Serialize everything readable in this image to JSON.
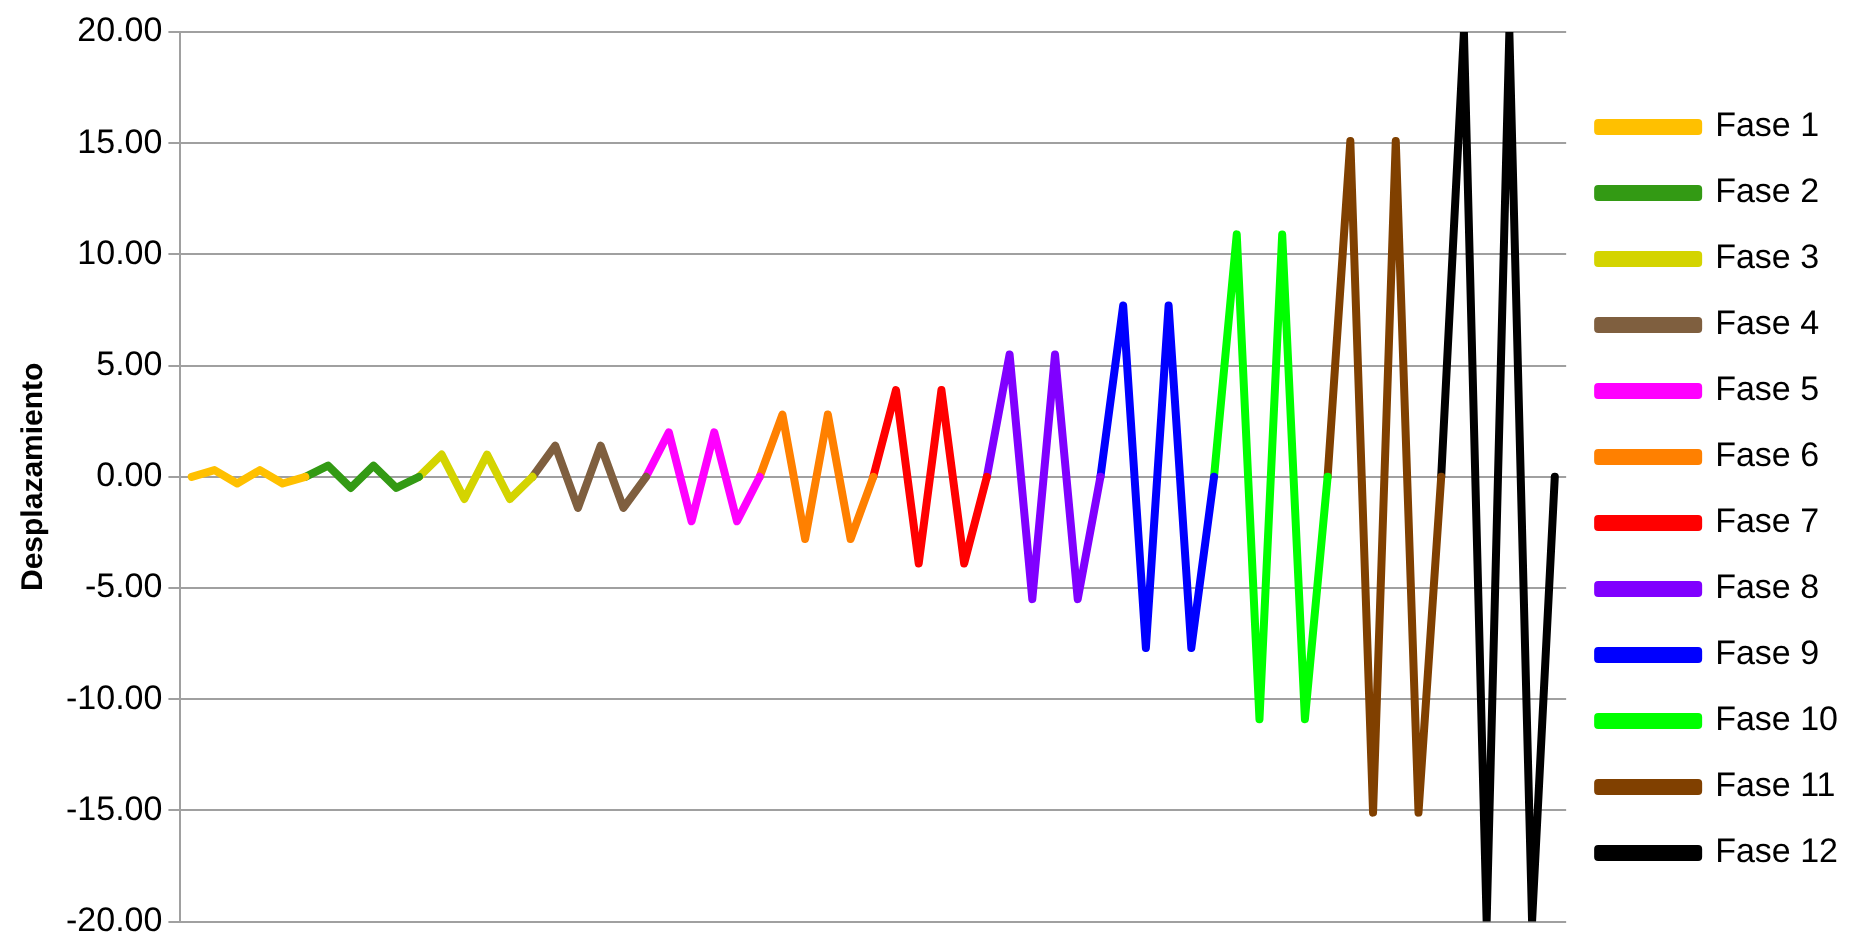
{
  "chart_data": {
    "type": "line",
    "ylabel": "Desplazamiento",
    "ylim": [
      -20,
      20
    ],
    "categories": [
      null,
      null,
      null,
      null,
      null,
      null,
      null,
      null,
      null,
      null,
      null,
      null,
      null,
      null,
      null,
      null,
      null,
      null,
      null,
      null,
      null,
      null,
      null,
      null,
      null,
      null,
      null,
      null,
      null,
      null,
      null,
      null,
      null,
      null,
      null,
      null,
      null,
      null,
      null,
      null,
      null,
      null,
      null,
      null,
      null,
      null,
      null,
      null,
      null,
      null,
      null,
      null,
      null,
      null,
      null,
      null,
      null,
      null,
      null,
      null,
      null
    ],
    "yticks": [
      {
        "value": -20,
        "label": "-20.00"
      },
      {
        "value": -15,
        "label": "-15.00"
      },
      {
        "value": -10,
        "label": "-10.00"
      },
      {
        "value": -5,
        "label": "-5.00"
      },
      {
        "value": 0,
        "label": "0.00"
      },
      {
        "value": 5,
        "label": "5.00"
      },
      {
        "value": 10,
        "label": "10.00"
      },
      {
        "value": 15,
        "label": "15.00"
      },
      {
        "value": 20,
        "label": "20.00"
      }
    ],
    "grid": "y",
    "legend": "right",
    "tick_labels": "y",
    "marker": "none",
    "line_style": "solid",
    "series": [
      {
        "name": "Fase 1",
        "color": "#ffc000",
        "values": [
          0,
          0.3,
          -0.3,
          0.3,
          -0.3,
          0,
          null,
          null,
          null,
          null,
          null,
          null,
          null,
          null,
          null,
          null,
          null,
          null,
          null,
          null,
          null,
          null,
          null,
          null,
          null,
          null,
          null,
          null,
          null,
          null,
          null,
          null,
          null,
          null,
          null,
          null,
          null,
          null,
          null,
          null,
          null,
          null,
          null,
          null,
          null,
          null,
          null,
          null,
          null,
          null,
          null,
          null,
          null,
          null,
          null,
          null,
          null,
          null,
          null,
          null,
          null
        ]
      },
      {
        "name": "Fase 2",
        "color": "#339a14",
        "values": [
          null,
          null,
          null,
          null,
          null,
          0,
          0.5,
          -0.5,
          0.5,
          -0.5,
          0,
          null,
          null,
          null,
          null,
          null,
          null,
          null,
          null,
          null,
          null,
          null,
          null,
          null,
          null,
          null,
          null,
          null,
          null,
          null,
          null,
          null,
          null,
          null,
          null,
          null,
          null,
          null,
          null,
          null,
          null,
          null,
          null,
          null,
          null,
          null,
          null,
          null,
          null,
          null,
          null,
          null,
          null,
          null,
          null,
          null,
          null,
          null,
          null,
          null,
          null
        ]
      },
      {
        "name": "Fase 3",
        "color": "#d4d400",
        "values": [
          null,
          null,
          null,
          null,
          null,
          null,
          null,
          null,
          null,
          null,
          0,
          1.0,
          -1.0,
          1.0,
          -1.0,
          0,
          null,
          null,
          null,
          null,
          null,
          null,
          null,
          null,
          null,
          null,
          null,
          null,
          null,
          null,
          null,
          null,
          null,
          null,
          null,
          null,
          null,
          null,
          null,
          null,
          null,
          null,
          null,
          null,
          null,
          null,
          null,
          null,
          null,
          null,
          null,
          null,
          null,
          null,
          null,
          null,
          null,
          null,
          null,
          null,
          null
        ]
      },
      {
        "name": "Fase 4",
        "color": "#7f5f3f",
        "values": [
          null,
          null,
          null,
          null,
          null,
          null,
          null,
          null,
          null,
          null,
          null,
          null,
          null,
          null,
          null,
          0,
          1.4,
          -1.4,
          1.4,
          -1.4,
          0,
          null,
          null,
          null,
          null,
          null,
          null,
          null,
          null,
          null,
          null,
          null,
          null,
          null,
          null,
          null,
          null,
          null,
          null,
          null,
          null,
          null,
          null,
          null,
          null,
          null,
          null,
          null,
          null,
          null,
          null,
          null,
          null,
          null,
          null,
          null,
          null,
          null,
          null,
          null,
          null
        ]
      },
      {
        "name": "Fase 5",
        "color": "#ff00ff",
        "values": [
          null,
          null,
          null,
          null,
          null,
          null,
          null,
          null,
          null,
          null,
          null,
          null,
          null,
          null,
          null,
          null,
          null,
          null,
          null,
          null,
          0,
          2.0,
          -2.0,
          2.0,
          -2.0,
          0,
          null,
          null,
          null,
          null,
          null,
          null,
          null,
          null,
          null,
          null,
          null,
          null,
          null,
          null,
          null,
          null,
          null,
          null,
          null,
          null,
          null,
          null,
          null,
          null,
          null,
          null,
          null,
          null,
          null,
          null,
          null,
          null,
          null,
          null,
          null
        ]
      },
      {
        "name": "Fase 6",
        "color": "#ff8000",
        "values": [
          null,
          null,
          null,
          null,
          null,
          null,
          null,
          null,
          null,
          null,
          null,
          null,
          null,
          null,
          null,
          null,
          null,
          null,
          null,
          null,
          null,
          null,
          null,
          null,
          null,
          0,
          2.8,
          -2.8,
          2.8,
          -2.8,
          0,
          null,
          null,
          null,
          null,
          null,
          null,
          null,
          null,
          null,
          null,
          null,
          null,
          null,
          null,
          null,
          null,
          null,
          null,
          null,
          null,
          null,
          null,
          null,
          null,
          null,
          null,
          null,
          null,
          null,
          null
        ]
      },
      {
        "name": "Fase 7",
        "color": "#ff0000",
        "values": [
          null,
          null,
          null,
          null,
          null,
          null,
          null,
          null,
          null,
          null,
          null,
          null,
          null,
          null,
          null,
          null,
          null,
          null,
          null,
          null,
          null,
          null,
          null,
          null,
          null,
          null,
          null,
          null,
          null,
          null,
          0,
          3.9,
          -3.9,
          3.9,
          -3.9,
          0,
          null,
          null,
          null,
          null,
          null,
          null,
          null,
          null,
          null,
          null,
          null,
          null,
          null,
          null,
          null,
          null,
          null,
          null,
          null,
          null,
          null,
          null,
          null,
          null,
          null
        ]
      },
      {
        "name": "Fase 8",
        "color": "#8000ff",
        "values": [
          null,
          null,
          null,
          null,
          null,
          null,
          null,
          null,
          null,
          null,
          null,
          null,
          null,
          null,
          null,
          null,
          null,
          null,
          null,
          null,
          null,
          null,
          null,
          null,
          null,
          null,
          null,
          null,
          null,
          null,
          null,
          null,
          null,
          null,
          null,
          0,
          5.5,
          -5.5,
          5.5,
          -5.5,
          0,
          null,
          null,
          null,
          null,
          null,
          null,
          null,
          null,
          null,
          null,
          null,
          null,
          null,
          null,
          null,
          null,
          null,
          null,
          null,
          null
        ]
      },
      {
        "name": "Fase 9",
        "color": "#0000ff",
        "values": [
          null,
          null,
          null,
          null,
          null,
          null,
          null,
          null,
          null,
          null,
          null,
          null,
          null,
          null,
          null,
          null,
          null,
          null,
          null,
          null,
          null,
          null,
          null,
          null,
          null,
          null,
          null,
          null,
          null,
          null,
          null,
          null,
          null,
          null,
          null,
          null,
          null,
          null,
          null,
          null,
          0,
          7.7,
          -7.7,
          7.7,
          -7.7,
          0,
          null,
          null,
          null,
          null,
          null,
          null,
          null,
          null,
          null,
          null,
          null,
          null,
          null,
          null,
          null
        ]
      },
      {
        "name": "Fase 10",
        "color": "#00ff00",
        "values": [
          null,
          null,
          null,
          null,
          null,
          null,
          null,
          null,
          null,
          null,
          null,
          null,
          null,
          null,
          null,
          null,
          null,
          null,
          null,
          null,
          null,
          null,
          null,
          null,
          null,
          null,
          null,
          null,
          null,
          null,
          null,
          null,
          null,
          null,
          null,
          null,
          null,
          null,
          null,
          null,
          null,
          null,
          null,
          null,
          null,
          0,
          10.9,
          -10.9,
          10.9,
          -10.9,
          0,
          null,
          null,
          null,
          null,
          null,
          null,
          null,
          null,
          null,
          null
        ]
      },
      {
        "name": "Fase 11",
        "color": "#804000",
        "values": [
          null,
          null,
          null,
          null,
          null,
          null,
          null,
          null,
          null,
          null,
          null,
          null,
          null,
          null,
          null,
          null,
          null,
          null,
          null,
          null,
          null,
          null,
          null,
          null,
          null,
          null,
          null,
          null,
          null,
          null,
          null,
          null,
          null,
          null,
          null,
          null,
          null,
          null,
          null,
          null,
          null,
          null,
          null,
          null,
          null,
          null,
          null,
          null,
          null,
          null,
          0,
          15.1,
          -15.1,
          15.1,
          -15.1,
          0,
          null,
          null,
          null,
          null,
          null
        ]
      },
      {
        "name": "Fase 12",
        "color": "#000000",
        "values": [
          null,
          null,
          null,
          null,
          null,
          null,
          null,
          null,
          null,
          null,
          null,
          null,
          null,
          null,
          null,
          null,
          null,
          null,
          null,
          null,
          null,
          null,
          null,
          null,
          null,
          null,
          null,
          null,
          null,
          null,
          null,
          null,
          null,
          null,
          null,
          null,
          null,
          null,
          null,
          null,
          null,
          null,
          null,
          null,
          null,
          null,
          null,
          null,
          null,
          null,
          null,
          null,
          null,
          null,
          null,
          0,
          20,
          -20,
          20,
          -20,
          0
        ]
      }
    ]
  }
}
